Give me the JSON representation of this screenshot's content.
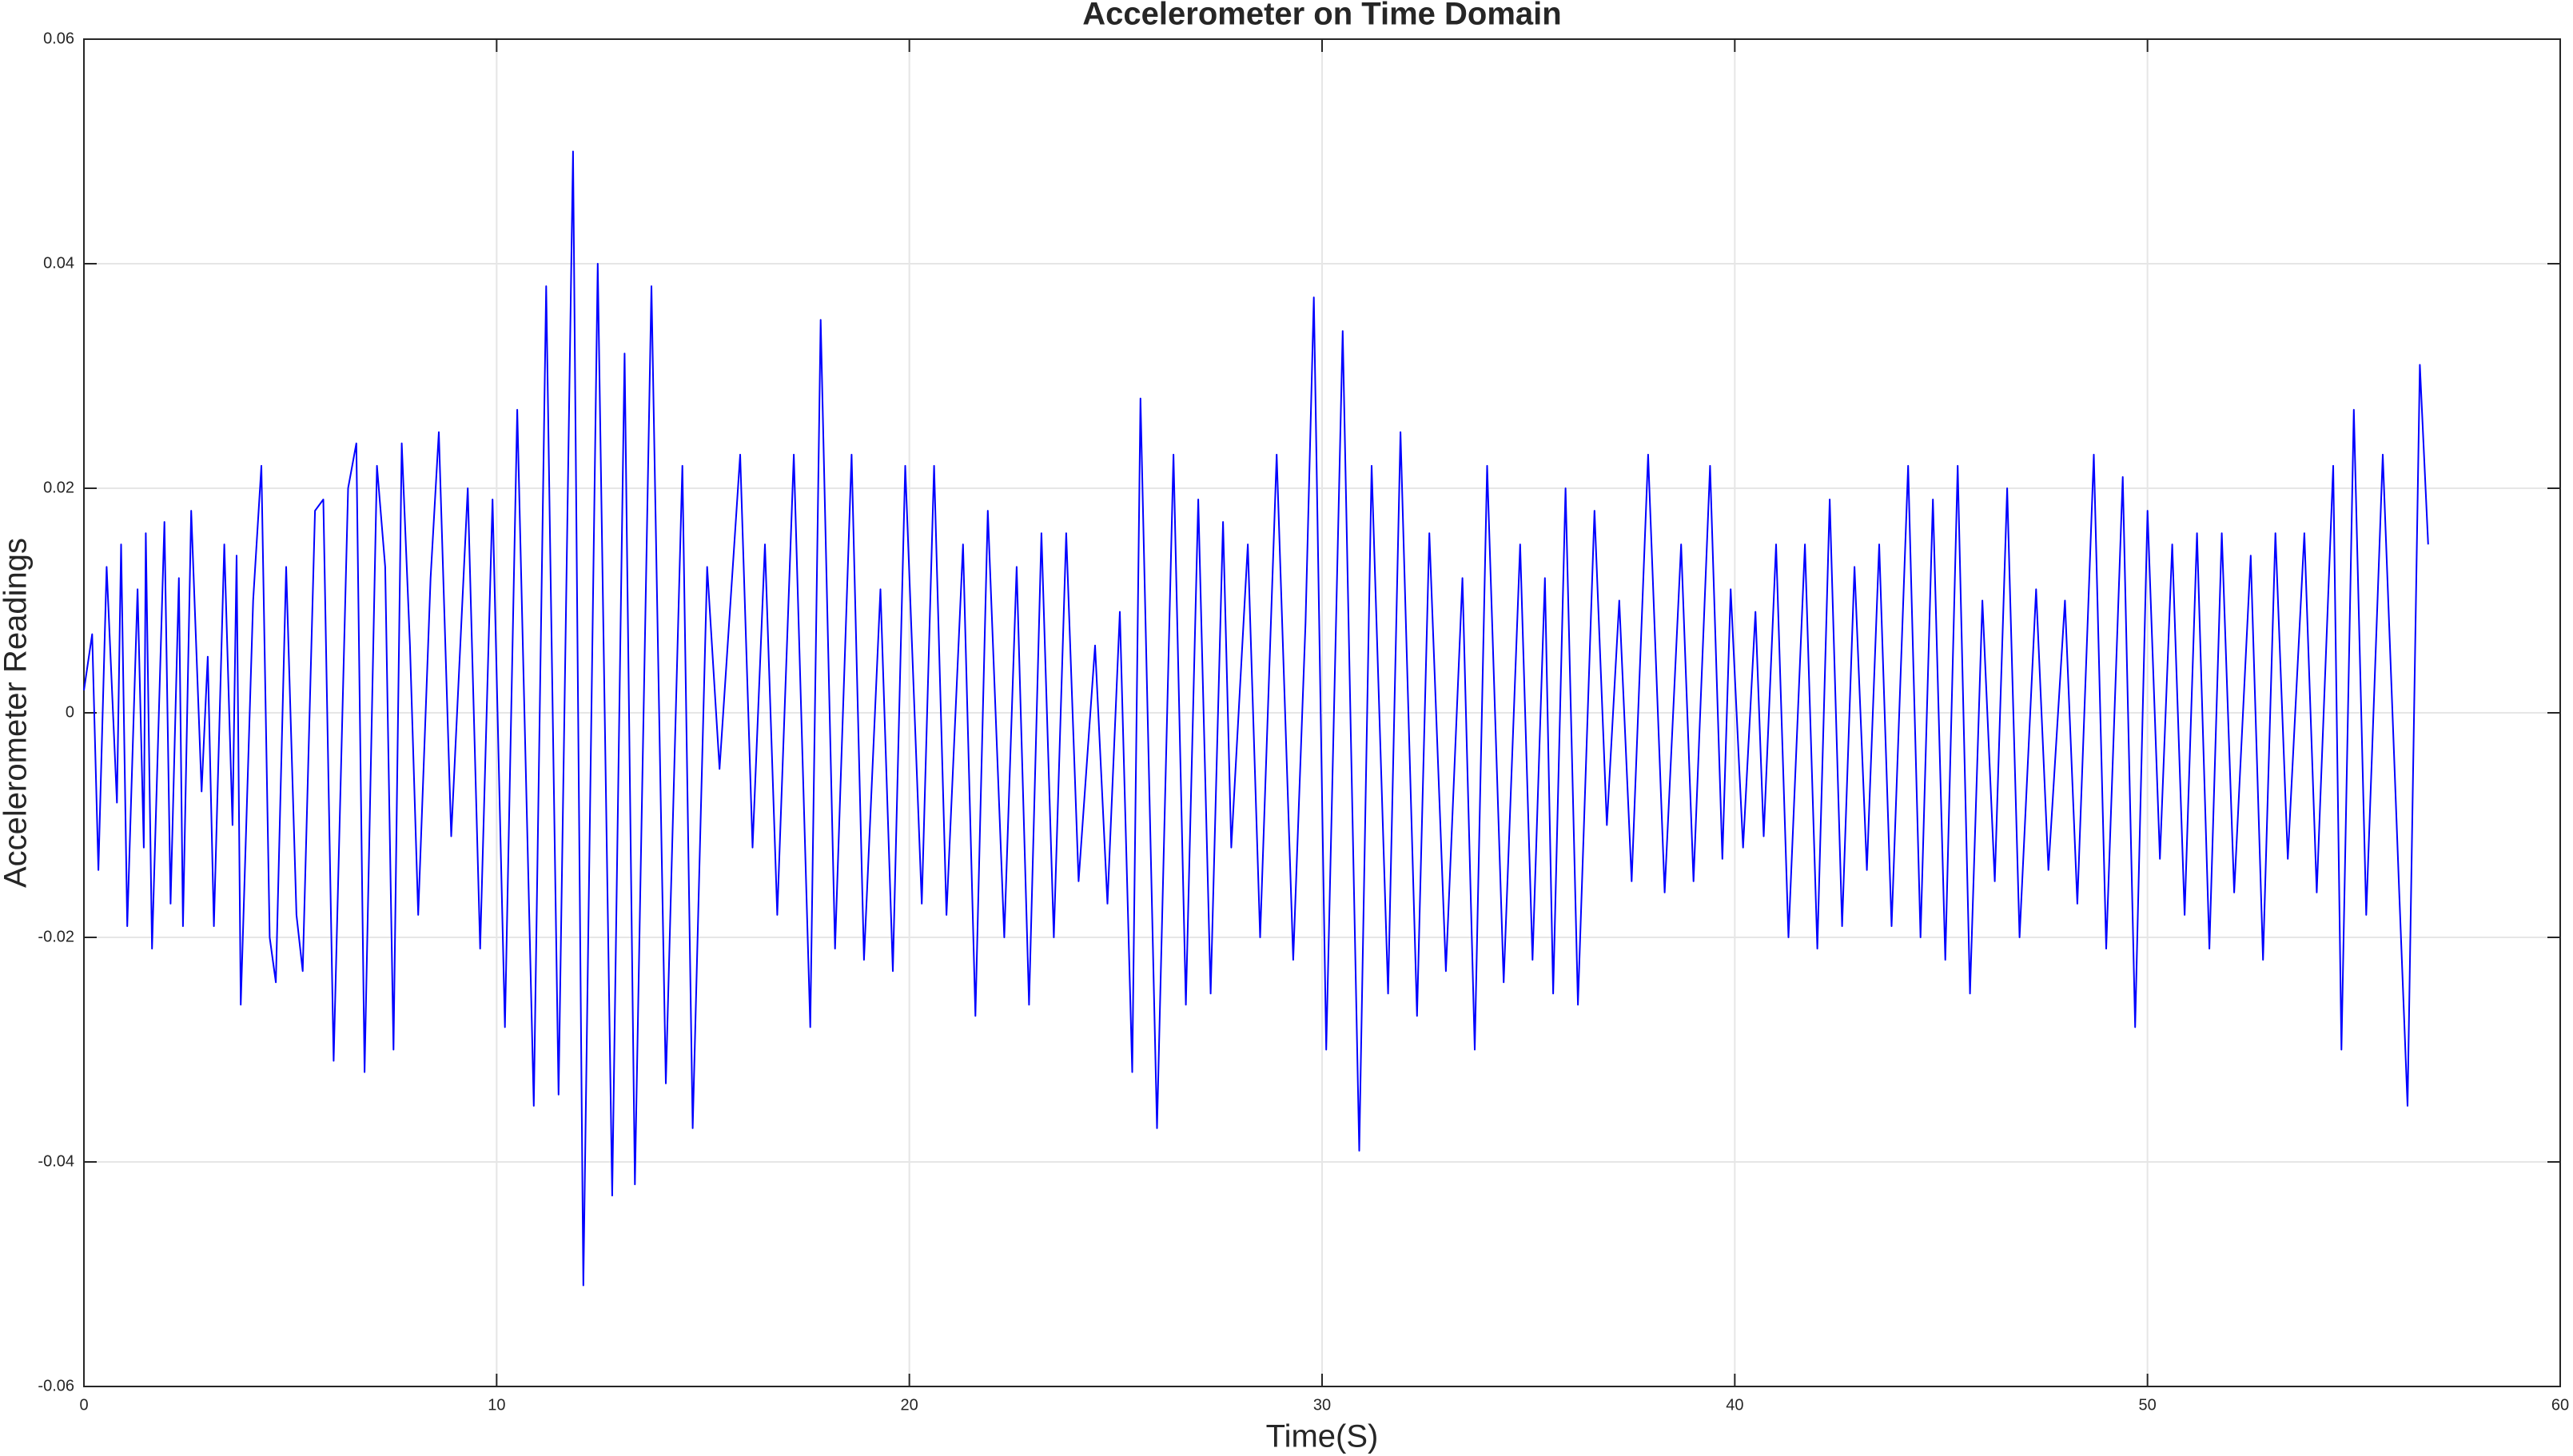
{
  "chart_data": {
    "type": "line",
    "title": "Accelerometer on Time Domain",
    "xlabel": "Time(S)",
    "ylabel": "Accelerometer Readings",
    "color": "#0000ff",
    "grid": true,
    "xlim": [
      0,
      60
    ],
    "xticks": [
      0,
      10,
      20,
      30,
      40,
      50,
      60
    ],
    "ylim": [
      -0.06,
      0.06
    ],
    "yticks": [
      -0.06,
      -0.04,
      -0.02,
      0,
      0.02,
      0.04,
      0.06
    ],
    "x": [
      0,
      0.2,
      0.35,
      0.55,
      0.8,
      0.9,
      1.05,
      1.3,
      1.45,
      1.5,
      1.65,
      1.95,
      2.1,
      2.3,
      2.4,
      2.6,
      2.85,
      3.0,
      3.15,
      3.4,
      3.6,
      3.7,
      3.8,
      4.1,
      4.3,
      4.5,
      4.65,
      4.9,
      5.15,
      5.3,
      5.6,
      5.8,
      6.05,
      6.4,
      6.6,
      6.8,
      7.1,
      7.3,
      7.5,
      7.7,
      7.9,
      8.1,
      8.4,
      8.6,
      8.9,
      9.3,
      9.6,
      9.9,
      10.2,
      10.5,
      10.9,
      11.2,
      11.5,
      11.85,
      12.1,
      12.45,
      12.8,
      13.1,
      13.35,
      13.75,
      14.1,
      14.5,
      14.75,
      15.1,
      15.4,
      15.9,
      16.2,
      16.5,
      16.8,
      17.2,
      17.6,
      17.85,
      18.2,
      18.6,
      18.9,
      19.3,
      19.6,
      19.9,
      20.3,
      20.6,
      20.9,
      21.3,
      21.6,
      21.9,
      22.3,
      22.6,
      22.9,
      23.2,
      23.5,
      23.8,
      24.1,
      24.5,
      24.8,
      25.1,
      25.4,
      25.6,
      26.0,
      26.4,
      26.7,
      27.0,
      27.3,
      27.6,
      27.8,
      28.2,
      28.5,
      28.9,
      29.3,
      29.6,
      29.8,
      30.1,
      30.5,
      30.9,
      31.2,
      31.6,
      31.9,
      32.3,
      32.6,
      33.0,
      33.4,
      33.7,
      34.0,
      34.4,
      34.8,
      35.1,
      35.4,
      35.6,
      35.9,
      36.2,
      36.6,
      36.9,
      37.2,
      37.5,
      37.9,
      38.3,
      38.7,
      39.0,
      39.4,
      39.7,
      39.9,
      40.2,
      40.5,
      40.7,
      41.0,
      41.3,
      41.7,
      42.0,
      42.3,
      42.6,
      42.9,
      43.2,
      43.5,
      43.8,
      44.2,
      44.5,
      44.8,
      45.1,
      45.4,
      45.7,
      46.0,
      46.3,
      46.6,
      46.9,
      47.3,
      47.6,
      48.0,
      48.3,
      48.7,
      49.0,
      49.4,
      49.7,
      50.0,
      50.3,
      50.6,
      50.9,
      51.2,
      51.5,
      51.8,
      52.1,
      52.5,
      52.8,
      53.1,
      53.4,
      53.8,
      54.1,
      54.5,
      54.7,
      55.0,
      55.3,
      55.7,
      56.1,
      56.3,
      56.6,
      56.8
    ],
    "values": [
      0.002,
      0.007,
      -0.014,
      0.013,
      -0.008,
      0.015,
      -0.019,
      0.011,
      -0.012,
      0.016,
      -0.021,
      0.017,
      -0.017,
      0.012,
      -0.019,
      0.018,
      -0.007,
      0.005,
      -0.019,
      0.015,
      -0.01,
      0.014,
      -0.026,
      0.01,
      0.022,
      -0.02,
      -0.024,
      0.013,
      -0.018,
      -0.023,
      0.018,
      0.019,
      -0.031,
      0.02,
      0.024,
      -0.032,
      0.022,
      0.013,
      -0.03,
      0.024,
      0.006,
      -0.018,
      0.012,
      0.025,
      -0.011,
      0.02,
      -0.021,
      0.019,
      -0.028,
      0.027,
      -0.035,
      0.038,
      -0.034,
      0.05,
      -0.051,
      0.04,
      -0.043,
      0.032,
      -0.042,
      0.038,
      -0.033,
      0.022,
      -0.037,
      0.013,
      -0.005,
      0.023,
      -0.012,
      0.015,
      -0.018,
      0.023,
      -0.028,
      0.035,
      -0.021,
      0.023,
      -0.022,
      0.011,
      -0.023,
      0.022,
      -0.017,
      0.022,
      -0.018,
      0.015,
      -0.027,
      0.018,
      -0.02,
      0.013,
      -0.026,
      0.016,
      -0.02,
      0.016,
      -0.015,
      0.006,
      -0.017,
      0.009,
      -0.032,
      0.028,
      -0.037,
      0.023,
      -0.026,
      0.019,
      -0.025,
      0.017,
      -0.012,
      0.015,
      -0.02,
      0.023,
      -0.022,
      0.008,
      0.037,
      -0.03,
      0.034,
      -0.039,
      0.022,
      -0.025,
      0.025,
      -0.027,
      0.016,
      -0.023,
      0.012,
      -0.03,
      0.022,
      -0.024,
      0.015,
      -0.022,
      0.012,
      -0.025,
      0.02,
      -0.026,
      0.018,
      -0.01,
      0.01,
      -0.015,
      0.023,
      -0.016,
      0.015,
      -0.015,
      0.022,
      -0.013,
      0.011,
      -0.012,
      0.009,
      -0.011,
      0.015,
      -0.02,
      0.015,
      -0.021,
      0.019,
      -0.019,
      0.013,
      -0.014,
      0.015,
      -0.019,
      0.022,
      -0.02,
      0.019,
      -0.022,
      0.022,
      -0.025,
      0.01,
      -0.015,
      0.02,
      -0.02,
      0.011,
      -0.014,
      0.01,
      -0.017,
      0.023,
      -0.021,
      0.021,
      -0.028,
      0.018,
      -0.013,
      0.015,
      -0.018,
      0.016,
      -0.021,
      0.016,
      -0.016,
      0.014,
      -0.022,
      0.016,
      -0.013,
      0.016,
      -0.016,
      0.022,
      -0.03,
      0.027,
      -0.018,
      0.023,
      -0.016,
      -0.035,
      0.031,
      0.015
    ]
  }
}
